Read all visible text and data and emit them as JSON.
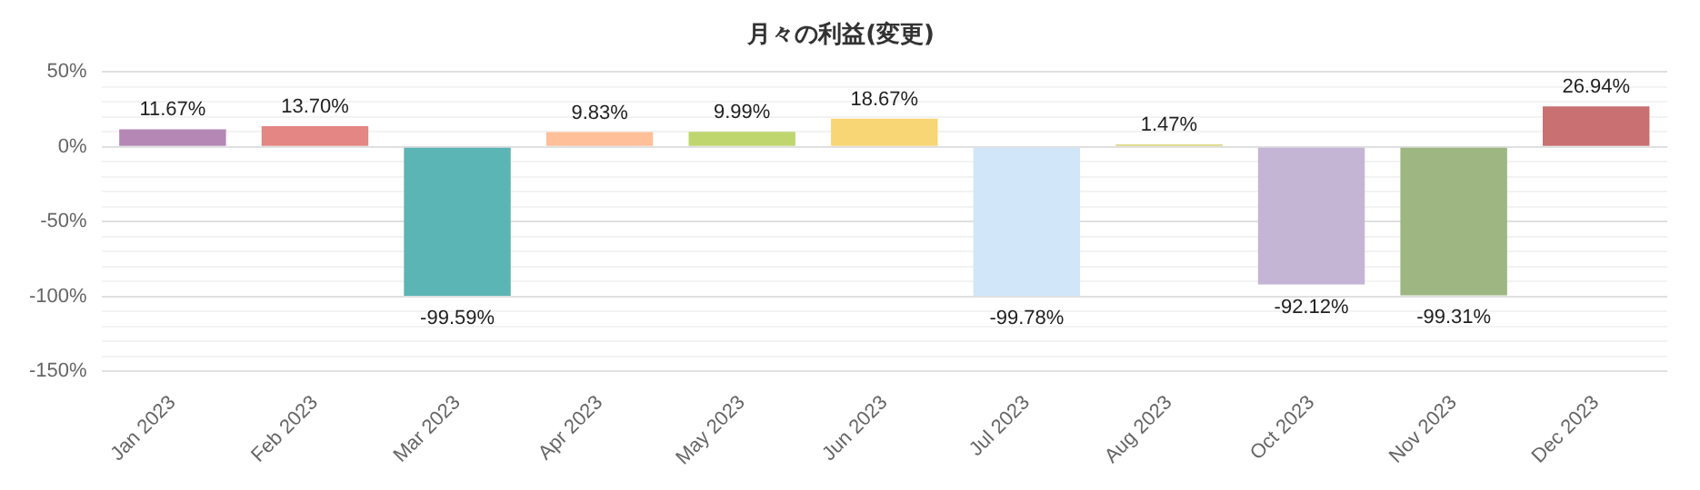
{
  "chart_data": {
    "type": "bar",
    "title": "月々の利益(変更)",
    "categories": [
      "Jan 2023",
      "Feb 2023",
      "Mar 2023",
      "Apr 2023",
      "May 2023",
      "Jun 2023",
      "Jul 2023",
      "Aug 2023",
      "Oct 2023",
      "Nov 2023",
      "Dec 2023"
    ],
    "values": [
      11.67,
      13.7,
      -99.59,
      9.83,
      9.99,
      18.67,
      -99.78,
      1.47,
      -92.12,
      -99.31,
      26.94
    ],
    "value_labels": [
      "11.67%",
      "13.70%",
      "-99.59%",
      "9.83%",
      "9.99%",
      "18.67%",
      "-99.78%",
      "1.47%",
      "-92.12%",
      "-99.31%",
      "26.94%"
    ],
    "colors": [
      "#b587b5",
      "#e38684",
      "#5bb5b4",
      "#ffbf98",
      "#bfd66f",
      "#f8d575",
      "#d1e6f8",
      "#d4d06c",
      "#c5b5d5",
      "#9db682",
      "#c97072"
    ],
    "ylim": [
      -150,
      50
    ],
    "yticks": [
      {
        "value": -150,
        "label": "-150%"
      },
      {
        "value": -140,
        "label": null
      },
      {
        "value": -130,
        "label": null
      },
      {
        "value": -120,
        "label": null
      },
      {
        "value": -110,
        "label": null
      },
      {
        "value": -100,
        "label": "-100%"
      },
      {
        "value": -90,
        "label": null
      },
      {
        "value": -80,
        "label": null
      },
      {
        "value": -70,
        "label": null
      },
      {
        "value": -60,
        "label": null
      },
      {
        "value": -50,
        "label": "-50%"
      },
      {
        "value": -40,
        "label": null
      },
      {
        "value": -30,
        "label": null
      },
      {
        "value": -20,
        "label": null
      },
      {
        "value": -10,
        "label": null
      },
      {
        "value": 0,
        "label": "0%"
      },
      {
        "value": 10,
        "label": null
      },
      {
        "value": 20,
        "label": null
      },
      {
        "value": 30,
        "label": null
      },
      {
        "value": 40,
        "label": null
      },
      {
        "value": 50,
        "label": "50%"
      }
    ],
    "grid": "y",
    "legend": false
  }
}
